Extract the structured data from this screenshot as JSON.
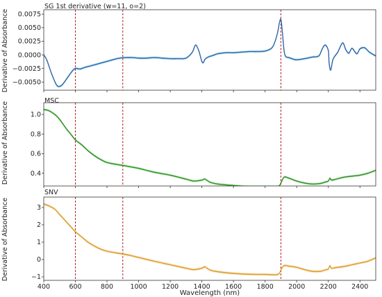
{
  "figure": {
    "xlabel": "Wavelength (nm)",
    "xlim": [
      400,
      2500
    ],
    "xticks": [
      400,
      600,
      800,
      1000,
      1200,
      1400,
      1600,
      1800,
      2000,
      2200,
      2400
    ],
    "vlines_nm": [
      600,
      900,
      1900
    ]
  },
  "chart_data": [
    {
      "type": "line",
      "title": "SG 1st derivative (w=11, o=2)",
      "ylabel": "Derivative of Absorbance",
      "ylim": [
        -0.0065,
        0.0083
      ],
      "yticks": [
        -0.005,
        -0.0025,
        0.0,
        0.0025,
        0.005,
        0.0075
      ],
      "ytick_labels": [
        "−0.0050",
        "−0.0025",
        "0.0000",
        "0.0025",
        "0.0050",
        "0.0075"
      ],
      "color": "#2f64a8",
      "band_color": "#8fd4ea",
      "x": [
        400,
        420,
        450,
        480,
        500,
        520,
        550,
        580,
        600,
        630,
        660,
        700,
        750,
        800,
        850,
        880,
        920,
        960,
        1000,
        1050,
        1100,
        1150,
        1200,
        1250,
        1300,
        1340,
        1360,
        1380,
        1400,
        1410,
        1420,
        1440,
        1460,
        1480,
        1500,
        1550,
        1600,
        1650,
        1700,
        1750,
        1800,
        1840,
        1860,
        1880,
        1890,
        1900,
        1910,
        1920,
        1930,
        1950,
        1980,
        2000,
        2050,
        2100,
        2140,
        2160,
        2180,
        2200,
        2205,
        2215,
        2230,
        2260,
        2290,
        2310,
        2330,
        2350,
        2380,
        2400,
        2430,
        2460,
        2500
      ],
      "y": [
        0.0,
        -0.001,
        -0.0035,
        -0.0055,
        -0.0058,
        -0.0054,
        -0.0042,
        -0.003,
        -0.0025,
        -0.0026,
        -0.0023,
        -0.002,
        -0.0016,
        -0.0012,
        -0.0008,
        -0.0006,
        -0.0005,
        -0.0005,
        -0.0006,
        -0.0006,
        -0.0005,
        -0.0006,
        -0.0007,
        -0.0007,
        -0.0006,
        0.0005,
        0.0018,
        0.0008,
        -0.0012,
        -0.0014,
        -0.0008,
        -0.0004,
        -0.0002,
        0.0,
        0.0002,
        0.0004,
        0.0004,
        0.0005,
        0.0006,
        0.0006,
        0.0007,
        0.0012,
        0.0022,
        0.0042,
        0.0058,
        0.0065,
        0.004,
        0.0008,
        -0.0003,
        -0.0005,
        -0.0008,
        -0.0009,
        -0.0007,
        -0.0004,
        -0.0002,
        0.001,
        0.0018,
        0.0008,
        -0.0015,
        -0.0028,
        -0.0008,
        0.0005,
        0.0022,
        0.001,
        0.0003,
        0.0012,
        0.0002,
        0.0011,
        0.0013,
        0.0005,
        -0.0002
      ]
    },
    {
      "type": "line",
      "title": "MSC",
      "ylabel": "Derivative of Absorbance",
      "ylim": [
        0.27,
        1.12
      ],
      "yticks": [
        0.4,
        0.6,
        0.8,
        1.0
      ],
      "ytick_labels": [
        "0.4",
        "0.6",
        "0.8",
        "1.0"
      ],
      "color": "#2e8a1e",
      "band_color": "#9ee3a6",
      "x": [
        400,
        430,
        470,
        500,
        540,
        580,
        600,
        640,
        680,
        720,
        760,
        800,
        860,
        900,
        950,
        1000,
        1100,
        1200,
        1300,
        1350,
        1400,
        1420,
        1450,
        1500,
        1600,
        1700,
        1800,
        1880,
        1900,
        1920,
        1950,
        2000,
        2050,
        2100,
        2150,
        2180,
        2200,
        2210,
        2220,
        2250,
        2300,
        2350,
        2400,
        2450,
        2500
      ],
      "y": [
        1.05,
        1.04,
        1.0,
        0.95,
        0.86,
        0.78,
        0.74,
        0.69,
        0.63,
        0.58,
        0.54,
        0.51,
        0.49,
        0.48,
        0.465,
        0.45,
        0.41,
        0.38,
        0.34,
        0.32,
        0.33,
        0.34,
        0.31,
        0.29,
        0.275,
        0.265,
        0.265,
        0.265,
        0.3,
        0.36,
        0.35,
        0.32,
        0.3,
        0.29,
        0.295,
        0.31,
        0.32,
        0.35,
        0.33,
        0.34,
        0.36,
        0.37,
        0.38,
        0.4,
        0.43
      ]
    },
    {
      "type": "line",
      "title": "SNV",
      "ylabel": "Derivative of Absorbance",
      "ylim": [
        -1.2,
        3.6
      ],
      "yticks": [
        -1,
        0,
        1,
        2,
        3
      ],
      "ytick_labels": [
        "−1",
        "0",
        "1",
        "2",
        "3"
      ],
      "color": "#d9a21b",
      "band_color": "#f6c9a8",
      "x": [
        400,
        430,
        470,
        500,
        540,
        580,
        600,
        640,
        680,
        720,
        760,
        800,
        860,
        900,
        950,
        1000,
        1100,
        1200,
        1300,
        1350,
        1400,
        1420,
        1450,
        1500,
        1600,
        1700,
        1800,
        1880,
        1900,
        1920,
        1950,
        2000,
        2050,
        2100,
        2150,
        2180,
        2200,
        2210,
        2220,
        2250,
        2300,
        2350,
        2400,
        2450,
        2500
      ],
      "y": [
        3.2,
        3.1,
        2.9,
        2.6,
        2.2,
        1.8,
        1.6,
        1.3,
        1.0,
        0.78,
        0.6,
        0.48,
        0.38,
        0.32,
        0.23,
        0.12,
        -0.1,
        -0.3,
        -0.5,
        -0.58,
        -0.5,
        -0.42,
        -0.6,
        -0.7,
        -0.8,
        -0.85,
        -0.86,
        -0.86,
        -0.6,
        -0.35,
        -0.38,
        -0.45,
        -0.58,
        -0.68,
        -0.68,
        -0.6,
        -0.55,
        -0.35,
        -0.5,
        -0.46,
        -0.4,
        -0.3,
        -0.2,
        -0.1,
        0.1
      ]
    }
  ]
}
